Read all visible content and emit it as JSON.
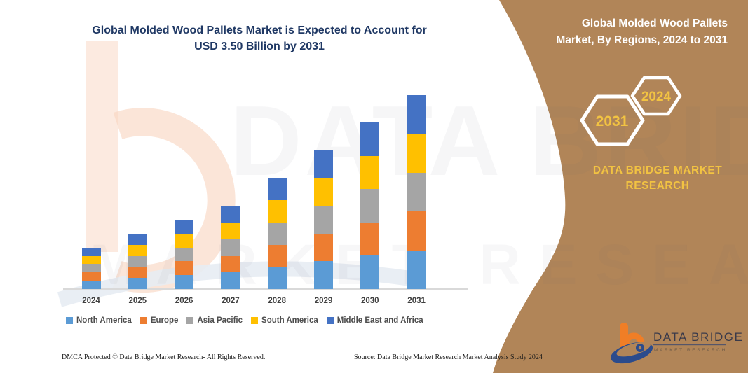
{
  "title": {
    "line1": "Global Molded Wood Pallets Market is Expected to Account for",
    "line2": "USD 3.50 Billion by 2031",
    "color": "#1F3864"
  },
  "side_panel": {
    "bg_color": "#B18558",
    "title_line1": "Global Molded Wood Pallets",
    "title_line2": "Market, By Regions, 2024 to 2031",
    "hexagons": [
      {
        "label": "2031"
      },
      {
        "label": "2024"
      }
    ],
    "brand_line1": "DATA BRIDGE MARKET",
    "brand_line2": "RESEARCH",
    "accent_color": "#F2C342"
  },
  "chart_data": {
    "type": "bar",
    "stacked": true,
    "title": "Global Molded Wood Pallets Market, By Regions, 2024 to 2031",
    "unit": "USD Billion",
    "categories": [
      "2024",
      "2025",
      "2026",
      "2027",
      "2028",
      "2029",
      "2030",
      "2031"
    ],
    "totals": [
      0.75,
      1.0,
      1.25,
      1.5,
      2.0,
      2.5,
      3.0,
      3.5
    ],
    "series": [
      {
        "name": "North America",
        "color": "#5B9BD5",
        "values": [
          0.15,
          0.2,
          0.25,
          0.3,
          0.4,
          0.5,
          0.6,
          0.7
        ]
      },
      {
        "name": "Europe",
        "color": "#ED7D31",
        "values": [
          0.15,
          0.2,
          0.25,
          0.3,
          0.4,
          0.5,
          0.6,
          0.7
        ]
      },
      {
        "name": "Asia Pacific",
        "color": "#A5A5A5",
        "values": [
          0.15,
          0.2,
          0.25,
          0.3,
          0.4,
          0.5,
          0.6,
          0.7
        ]
      },
      {
        "name": "South America",
        "color": "#FFC000",
        "values": [
          0.15,
          0.2,
          0.25,
          0.3,
          0.4,
          0.5,
          0.6,
          0.7
        ]
      },
      {
        "name": "Middle East and Africa",
        "color": "#4472C4",
        "values": [
          0.15,
          0.2,
          0.25,
          0.3,
          0.4,
          0.5,
          0.6,
          0.7
        ]
      }
    ],
    "ylim": [
      0,
      3.5
    ],
    "grid": false,
    "axis_labels_shown": false,
    "legend_position": "bottom"
  },
  "watermark": {
    "text_line1": "DATA BRIDGE",
    "text_line2": "MARKET RESEARCH"
  },
  "logo": {
    "name": "DATA BRIDGE",
    "subtitle": "MARKET RESEARCH"
  },
  "footer": {
    "left": "DMCA Protected © Data Bridge Market Research-  All Rights Reserved.",
    "source": "Source: Data Bridge Market Research  Market Analysis Study 2024"
  }
}
